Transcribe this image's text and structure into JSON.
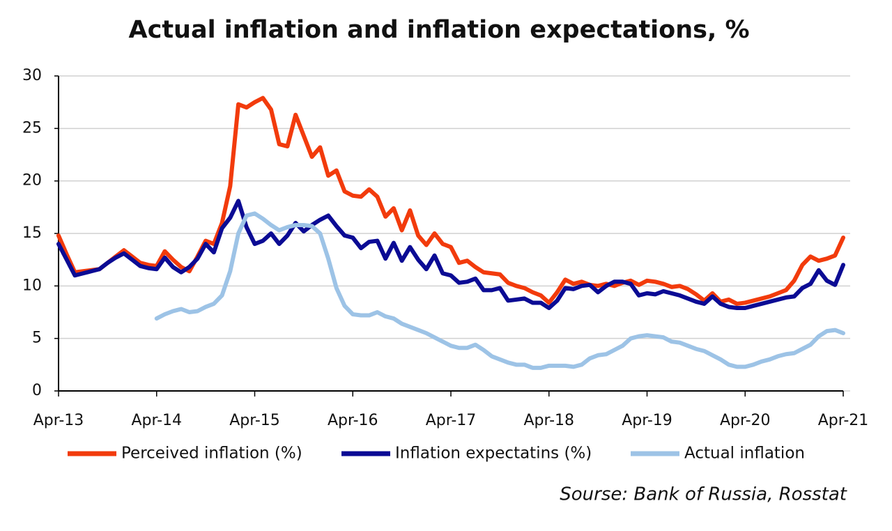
{
  "chart_data": {
    "type": "line",
    "title": "Actual inflation and inflation expectations, %",
    "source": "Sourse: Bank of Russia, Rosstat",
    "categories": [
      "Apr-13",
      null,
      null,
      null,
      null,
      null,
      null,
      null,
      null,
      null,
      null,
      null,
      "Apr-14",
      null,
      null,
      null,
      null,
      null,
      null,
      null,
      null,
      null,
      null,
      null,
      "Apr-15",
      null,
      null,
      null,
      null,
      null,
      null,
      null,
      null,
      null,
      null,
      null,
      "Apr-16",
      null,
      null,
      null,
      null,
      null,
      null,
      null,
      null,
      null,
      null,
      null,
      "Apr-17",
      null,
      null,
      null,
      null,
      null,
      null,
      null,
      null,
      null,
      null,
      null,
      "Apr-18",
      null,
      null,
      null,
      null,
      null,
      null,
      null,
      null,
      null,
      null,
      null,
      "Apr-19",
      null,
      null,
      null,
      null,
      null,
      null,
      null,
      null,
      null,
      null,
      null,
      "Apr-20",
      null,
      null,
      null,
      null,
      null,
      null,
      null,
      null,
      null,
      null,
      null,
      "Apr-21"
    ],
    "ylim": [
      0,
      30
    ],
    "yticks": [
      0,
      5,
      10,
      15,
      20,
      25,
      30
    ],
    "grid": true,
    "legend": "bottom",
    "series": [
      {
        "name": "Perceived inflation (%)",
        "color": "#f23b0c",
        "values": [
          14.8,
          13.0,
          11.3,
          11.4,
          11.5,
          11.6,
          12.2,
          12.8,
          13.4,
          12.8,
          12.2,
          12.0,
          11.9,
          13.3,
          12.5,
          11.8,
          11.4,
          12.8,
          14.3,
          14.0,
          16.0,
          19.5,
          27.3,
          27.0,
          27.5,
          27.9,
          26.8,
          23.5,
          23.3,
          26.3,
          24.3,
          22.3,
          23.2,
          20.5,
          21.0,
          19.0,
          18.6,
          18.5,
          19.2,
          18.5,
          16.6,
          17.4,
          15.3,
          17.2,
          14.8,
          13.9,
          15.0,
          14.0,
          13.7,
          12.2,
          12.4,
          11.8,
          11.3,
          11.2,
          11.1,
          10.3,
          10.0,
          9.8,
          9.4,
          9.1,
          8.4,
          9.4,
          10.6,
          10.2,
          10.4,
          10.1,
          10.0,
          10.2,
          10.0,
          10.3,
          10.5,
          10.1,
          10.5,
          10.4,
          10.2,
          9.9,
          10.0,
          9.7,
          9.2,
          8.6,
          9.3,
          8.5,
          8.7,
          8.3,
          8.4,
          8.6,
          8.8,
          9.0,
          9.3,
          9.6,
          10.5,
          12.0,
          12.8,
          12.4,
          12.6,
          12.9,
          14.6
        ]
      },
      {
        "name": "Inflation expectatins (%)",
        "color": "#0b0b94",
        "values": [
          14.0,
          12.5,
          11.0,
          11.2,
          11.4,
          11.6,
          12.2,
          12.7,
          13.1,
          12.5,
          11.9,
          11.7,
          11.6,
          12.7,
          11.8,
          11.3,
          11.8,
          12.6,
          14.0,
          13.2,
          15.5,
          16.5,
          18.1,
          15.6,
          14.0,
          14.3,
          15.0,
          14.0,
          14.8,
          16.0,
          15.2,
          15.8,
          16.3,
          16.7,
          15.7,
          14.8,
          14.6,
          13.6,
          14.2,
          14.3,
          12.6,
          14.1,
          12.4,
          13.7,
          12.5,
          11.6,
          12.9,
          11.2,
          11.0,
          10.3,
          10.4,
          10.7,
          9.6,
          9.6,
          9.8,
          8.6,
          8.7,
          8.8,
          8.4,
          8.4,
          7.9,
          8.6,
          9.8,
          9.7,
          10.0,
          10.1,
          9.4,
          10.0,
          10.4,
          10.4,
          10.2,
          9.1,
          9.3,
          9.2,
          9.5,
          9.3,
          9.1,
          8.8,
          8.5,
          8.3,
          9.0,
          8.3,
          8.0,
          7.9,
          7.9,
          8.1,
          8.3,
          8.5,
          8.7,
          8.9,
          9.0,
          9.8,
          10.2,
          11.5,
          10.5,
          10.1,
          12.0
        ]
      },
      {
        "name": "Actual inflation",
        "color": "#9dc3e6",
        "values": [
          null,
          null,
          null,
          null,
          null,
          null,
          null,
          null,
          null,
          null,
          null,
          null,
          6.9,
          7.3,
          7.6,
          7.8,
          7.5,
          7.6,
          8.0,
          8.3,
          9.1,
          11.4,
          15.0,
          16.7,
          16.9,
          16.4,
          15.8,
          15.3,
          15.6,
          15.8,
          15.8,
          15.7,
          15.0,
          12.6,
          9.8,
          8.1,
          7.3,
          7.2,
          7.2,
          7.5,
          7.1,
          6.9,
          6.4,
          6.1,
          5.8,
          5.5,
          5.1,
          4.7,
          4.3,
          4.1,
          4.1,
          4.4,
          3.9,
          3.3,
          3.0,
          2.7,
          2.5,
          2.5,
          2.2,
          2.2,
          2.4,
          2.4,
          2.4,
          2.3,
          2.5,
          3.1,
          3.4,
          3.5,
          3.9,
          4.3,
          5.0,
          5.2,
          5.3,
          5.2,
          5.1,
          4.7,
          4.6,
          4.3,
          4.0,
          3.8,
          3.4,
          3.0,
          2.5,
          2.3,
          2.3,
          2.5,
          2.8,
          3.0,
          3.3,
          3.5,
          3.6,
          4.0,
          4.4,
          5.2,
          5.7,
          5.8,
          5.5
        ]
      }
    ]
  }
}
